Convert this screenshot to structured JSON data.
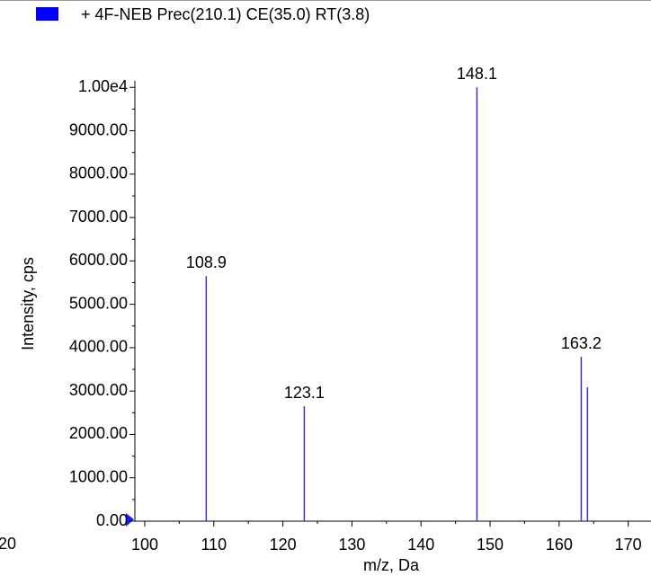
{
  "chart_data": {
    "type": "stick",
    "legend": "+ 4F-NEB Prec(210.1) CE(35.0) RT(3.8)",
    "legend_color": "#0000ff",
    "x_label": "m/z, Da",
    "y_label": "Intensity, cps",
    "edge_label": "20",
    "color": "#3a2fcf",
    "x": [
      108.9,
      123.1,
      148.1,
      163.2
    ],
    "values": [
      5650,
      2650,
      10000,
      3790
    ],
    "unlabeled_peaks": {
      "x": [
        164.1
      ],
      "values": [
        3090
      ]
    },
    "xlim": [
      98.57,
      173.3
    ],
    "ylim": [
      0,
      10150
    ],
    "xticks": [
      100,
      110,
      120,
      130,
      140,
      150,
      160,
      170
    ],
    "yticks": [
      {
        "value": 0,
        "label": "0.00"
      },
      {
        "value": 1000,
        "label": "1000.00"
      },
      {
        "value": 2000,
        "label": "2000.00"
      },
      {
        "value": 3000,
        "label": "3000.00"
      },
      {
        "value": 4000,
        "label": "4000.00"
      },
      {
        "value": 5000,
        "label": "5000.00"
      },
      {
        "value": 6000,
        "label": "6000.00"
      },
      {
        "value": 7000,
        "label": "7000.00"
      },
      {
        "value": 8000,
        "label": "8000.00"
      },
      {
        "value": 9000,
        "label": "9000.00"
      },
      {
        "value": 10000,
        "label": "1.00e4"
      }
    ]
  }
}
